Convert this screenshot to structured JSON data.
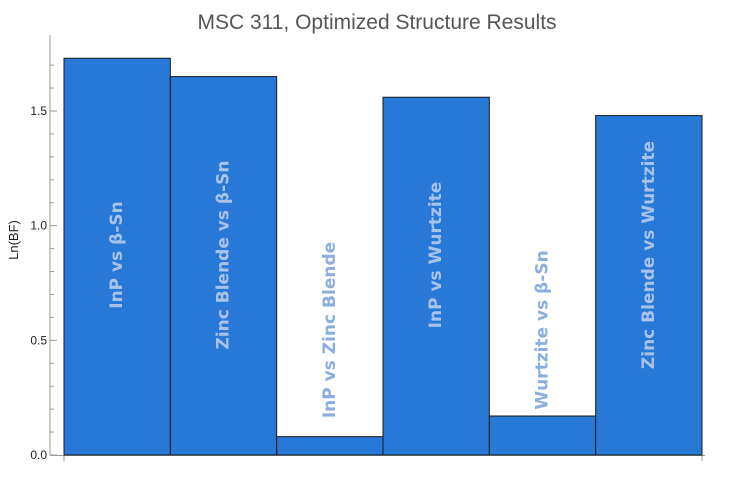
{
  "chart_data": {
    "type": "bar",
    "title": "MSC 311, Optimized Structure Results",
    "ylabel": "Ln(BF)",
    "xlabel": "",
    "ylim": [
      0,
      1.8
    ],
    "yticks": [
      "0.0",
      "0.5",
      "1.0",
      "1.5"
    ],
    "ytick_values": [
      0,
      0.5,
      1.0,
      1.5
    ],
    "grid": false,
    "categories": [
      "InP vs β-Sn",
      "Zinc Blende vs β-Sn",
      "InP vs Zinc Blende",
      "InP vs Wurtzite",
      "Wurtzite vs β-Sn",
      "Zinc Blende vs Wurtzite"
    ],
    "values": [
      1.73,
      1.65,
      0.08,
      1.56,
      0.17,
      1.48
    ],
    "colors": {
      "bar": "#2878d8",
      "bar_edge": "#1a1a1a",
      "label_on_bar": "#a9c2ea",
      "label_off_bar": "#8aaee0"
    }
  }
}
